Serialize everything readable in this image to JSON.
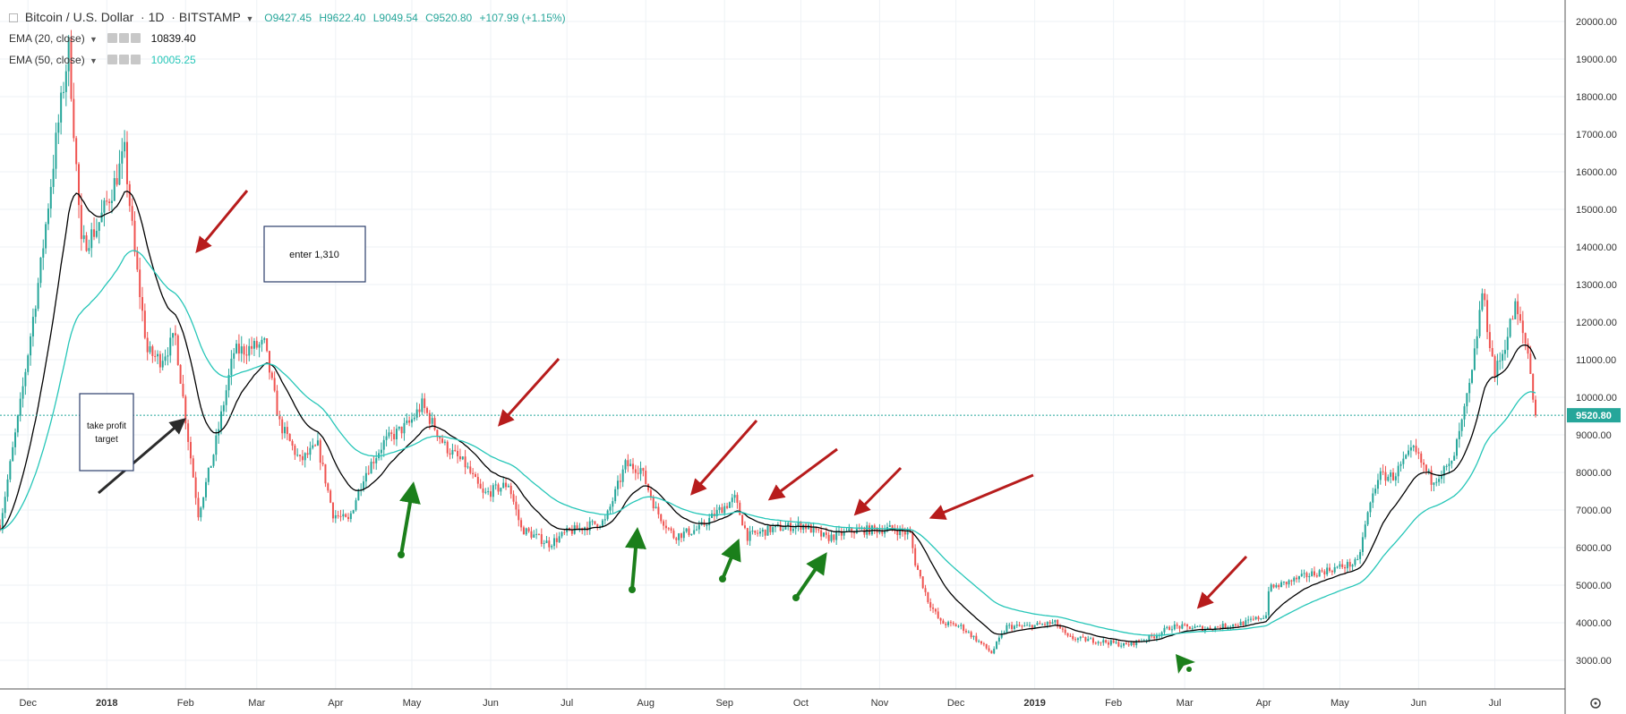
{
  "header": {
    "symbol": "Bitcoin / U.S. Dollar",
    "interval": "1D",
    "exchange": "BITSTAMP",
    "ohlc": {
      "open": "O9427.45",
      "high": "H9622.40",
      "low": "L9049.54",
      "close": "C9520.80"
    },
    "change": "+107.99 (+1.15%)"
  },
  "indicators": [
    {
      "label": "EMA (20, close)",
      "value": "10839.40",
      "color": "#000000"
    },
    {
      "label": "EMA (50, close)",
      "value": "10005.25",
      "color": "#26c6b8"
    }
  ],
  "annotations": {
    "enter_box": "enter 1,310",
    "take_profit_box": [
      "take profit",
      "target"
    ]
  },
  "price_label": "9520.80",
  "colors": {
    "up": "#26a69a",
    "down": "#ef5350",
    "ema20": "#000000",
    "ema50": "#26c6b8",
    "arrow_red": "#b71c1c",
    "arrow_green": "#1b7f1b",
    "arrow_black": "#2b2b2b"
  },
  "chart_data": {
    "type": "candlestick",
    "title": "Bitcoin / U.S. Dollar · 1D · BITSTAMP",
    "xlabel": "",
    "ylabel": "",
    "ylim": [
      2400,
      20400
    ],
    "y_ticks": [
      "3000.00",
      "4000.00",
      "5000.00",
      "6000.00",
      "7000.00",
      "8000.00",
      "9000.00",
      "10000.00",
      "11000.00",
      "12000.00",
      "13000.00",
      "14000.00",
      "15000.00",
      "16000.00",
      "17000.00",
      "18000.00",
      "19000.00",
      "20000.00"
    ],
    "x_ticks": [
      "Dec",
      "2018",
      "Feb",
      "Mar",
      "Apr",
      "May",
      "Jun",
      "Jul",
      "Aug",
      "Sep",
      "Oct",
      "Nov",
      "Dec",
      "2019",
      "Feb",
      "Mar",
      "Apr",
      "May",
      "Jun",
      "Jul"
    ],
    "last_price": 9520.8,
    "price_path": [
      [
        "2017-11-20",
        6600
      ],
      [
        "2017-11-28",
        9800
      ],
      [
        "2017-12-06",
        13500
      ],
      [
        "2017-12-12",
        16800
      ],
      [
        "2017-12-17",
        19300
      ],
      [
        "2017-12-22",
        14000
      ],
      [
        "2017-12-28",
        14500
      ],
      [
        "2018-01-03",
        15500
      ],
      [
        "2018-01-08",
        16500
      ],
      [
        "2018-01-12",
        13800
      ],
      [
        "2018-01-17",
        11200
      ],
      [
        "2018-01-22",
        11000
      ],
      [
        "2018-01-28",
        11600
      ],
      [
        "2018-02-02",
        8900
      ],
      [
        "2018-02-06",
        6900
      ],
      [
        "2018-02-12",
        8500
      ],
      [
        "2018-02-20",
        11200
      ],
      [
        "2018-03-04",
        11400
      ],
      [
        "2018-03-10",
        9300
      ],
      [
        "2018-03-18",
        8300
      ],
      [
        "2018-03-25",
        8700
      ],
      [
        "2018-03-31",
        6900
      ],
      [
        "2018-04-06",
        6700
      ],
      [
        "2018-04-12",
        7900
      ],
      [
        "2018-04-20",
        8800
      ],
      [
        "2018-04-30",
        9300
      ],
      [
        "2018-05-05",
        9800
      ],
      [
        "2018-05-14",
        8700
      ],
      [
        "2018-05-22",
        8200
      ],
      [
        "2018-05-29",
        7400
      ],
      [
        "2018-06-08",
        7700
      ],
      [
        "2018-06-13",
        6500
      ],
      [
        "2018-06-24",
        6100
      ],
      [
        "2018-07-01",
        6400
      ],
      [
        "2018-07-10",
        6600
      ],
      [
        "2018-07-16",
        6700
      ],
      [
        "2018-07-24",
        8200
      ],
      [
        "2018-07-30",
        8100
      ],
      [
        "2018-08-05",
        7000
      ],
      [
        "2018-08-12",
        6300
      ],
      [
        "2018-08-22",
        6500
      ],
      [
        "2018-08-30",
        7000
      ],
      [
        "2018-09-05",
        7300
      ],
      [
        "2018-09-10",
        6300
      ],
      [
        "2018-09-20",
        6500
      ],
      [
        "2018-10-02",
        6600
      ],
      [
        "2018-10-11",
        6250
      ],
      [
        "2018-10-22",
        6450
      ],
      [
        "2018-11-06",
        6500
      ],
      [
        "2018-11-13",
        6350
      ],
      [
        "2018-11-15",
        5600
      ],
      [
        "2018-11-20",
        4600
      ],
      [
        "2018-11-25",
        4000
      ],
      [
        "2018-12-03",
        3900
      ],
      [
        "2018-12-10",
        3500
      ],
      [
        "2018-12-15",
        3200
      ],
      [
        "2018-12-21",
        3900
      ],
      [
        "2018-12-29",
        3900
      ],
      [
        "2019-01-09",
        4000
      ],
      [
        "2019-01-14",
        3600
      ],
      [
        "2019-01-28",
        3500
      ],
      [
        "2019-02-06",
        3400
      ],
      [
        "2019-02-17",
        3650
      ],
      [
        "2019-02-24",
        3900
      ],
      [
        "2019-03-10",
        3850
      ],
      [
        "2019-03-25",
        4000
      ],
      [
        "2019-04-02",
        4200
      ],
      [
        "2019-04-03",
        4900
      ],
      [
        "2019-04-20",
        5300
      ],
      [
        "2019-05-08",
        5600
      ],
      [
        "2019-05-12",
        6900
      ],
      [
        "2019-05-16",
        7900
      ],
      [
        "2019-05-22",
        7900
      ],
      [
        "2019-05-30",
        8600
      ],
      [
        "2019-06-06",
        7800
      ],
      [
        "2019-06-14",
        8200
      ],
      [
        "2019-06-18",
        9300
      ],
      [
        "2019-06-22",
        10600
      ],
      [
        "2019-06-26",
        12800
      ],
      [
        "2019-07-01",
        10600
      ],
      [
        "2019-07-04",
        11200
      ],
      [
        "2019-07-09",
        12400
      ],
      [
        "2019-07-14",
        11200
      ],
      [
        "2019-07-17",
        9500
      ]
    ]
  }
}
